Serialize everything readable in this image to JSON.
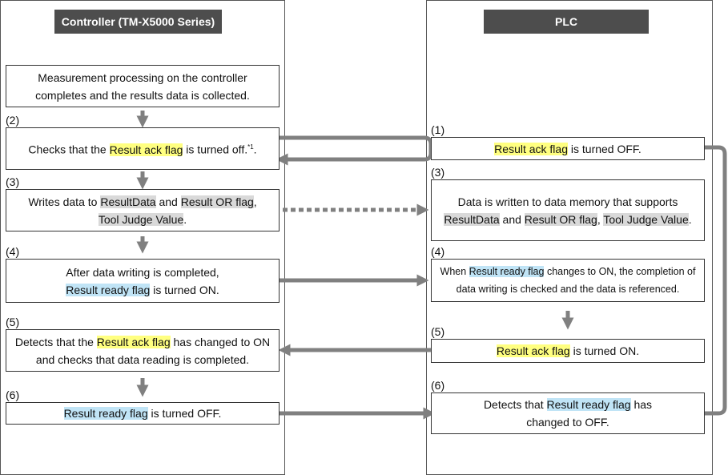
{
  "controller": {
    "title": "Controller (TM-X5000 Series)",
    "steps": [
      {
        "num": "",
        "segments": [
          {
            "t": "Measurement processing on the controller"
          },
          {
            "br": true
          },
          {
            "t": "completes and the results data is collected."
          }
        ]
      },
      {
        "num": "(2)",
        "segments": [
          {
            "t": "Checks that the "
          },
          {
            "t": "Result ack flag",
            "hl": "yellow"
          },
          {
            "t": " is turned off."
          },
          {
            "sup": "*1"
          },
          {
            "t": "."
          }
        ]
      },
      {
        "num": "(3)",
        "segments": [
          {
            "t": "Writes data to "
          },
          {
            "t": "ResultData",
            "hl": "gray"
          },
          {
            "t": " and "
          },
          {
            "t": "Result OR flag",
            "hl": "gray"
          },
          {
            "t": ","
          },
          {
            "br": true
          },
          {
            "t": "Tool Judge Value",
            "hl": "gray"
          },
          {
            "t": "."
          }
        ]
      },
      {
        "num": "(4)",
        "segments": [
          {
            "t": "After data writing is completed,"
          },
          {
            "br": true
          },
          {
            "t": "Result ready flag",
            "hl": "blue"
          },
          {
            "t": " is turned ON."
          }
        ]
      },
      {
        "num": "(5)",
        "segments": [
          {
            "t": "Detects that the "
          },
          {
            "t": "Result ack flag",
            "hl": "yellow"
          },
          {
            "t": " has changed to ON"
          },
          {
            "br": true
          },
          {
            "t": "and checks that data reading is completed."
          }
        ]
      },
      {
        "num": "(6)",
        "segments": [
          {
            "t": "Result ready flag",
            "hl": "blue"
          },
          {
            "t": " is turned OFF."
          }
        ]
      }
    ]
  },
  "plc": {
    "title": "PLC",
    "steps": [
      {
        "num": "(1)",
        "segments": [
          {
            "t": "Result ack flag",
            "hl": "yellow"
          },
          {
            "t": " is turned OFF."
          }
        ]
      },
      {
        "num": "(3)",
        "segments": [
          {
            "t": "Data is written to data memory that supports"
          },
          {
            "br": true
          },
          {
            "t": "ResultData",
            "hl": "gray"
          },
          {
            "t": " and "
          },
          {
            "t": "Result OR flag",
            "hl": "gray"
          },
          {
            "t": ", "
          },
          {
            "t": "Tool Judge Value",
            "hl": "gray"
          },
          {
            "t": "."
          }
        ]
      },
      {
        "num": "(4)",
        "segments": [
          {
            "t": "When "
          },
          {
            "t": "Result ready flag",
            "hl": "blue"
          },
          {
            "t": " changes to ON, the completion of"
          },
          {
            "br": true
          },
          {
            "t": "data writing is checked and the data is referenced."
          }
        ]
      },
      {
        "num": "(5)",
        "segments": [
          {
            "t": "Result ack flag",
            "hl": "yellow"
          },
          {
            "t": " is turned ON."
          }
        ]
      },
      {
        "num": "(6)",
        "segments": [
          {
            "t": "Detects that "
          },
          {
            "t": "Result ready flag",
            "hl": "blue"
          },
          {
            "t": " has"
          },
          {
            "br": true
          },
          {
            "t": "changed to OFF."
          }
        ]
      }
    ]
  },
  "colors": {
    "arrow": "#808080",
    "header": "#4d4d4d",
    "yellow": "#ffff80",
    "blue": "#c0e4f6",
    "gray": "#d9d9d9"
  }
}
